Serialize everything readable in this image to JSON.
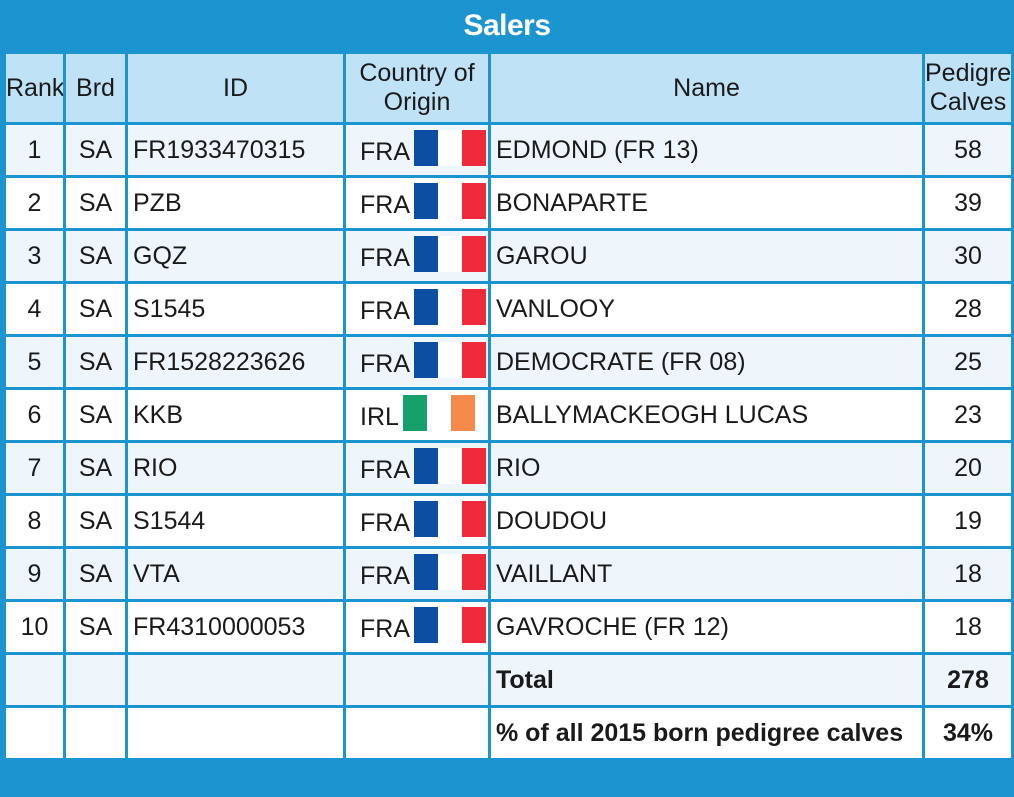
{
  "title": "Salers",
  "headers": {
    "rank": "Rank",
    "brd": "Brd",
    "id": "ID",
    "country_line1": "Country of",
    "country_line2": "Origin",
    "name": "Name",
    "calves_line1": "Pedigree",
    "calves_line2": "Calves"
  },
  "flag_colors": {
    "FRA": [
      "#0b4ea2",
      "#ffffff",
      "#ef2b3b"
    ],
    "IRL": [
      "#16a06c",
      "#ffffff",
      "#f58a4b"
    ]
  },
  "rows": [
    {
      "rank": "1",
      "brd": "SA",
      "id": "FR1933470315",
      "country": "FRA",
      "name": "EDMOND (FR 13)",
      "calves": "58"
    },
    {
      "rank": "2",
      "brd": "SA",
      "id": "PZB",
      "country": "FRA",
      "name": "BONAPARTE",
      "calves": "39"
    },
    {
      "rank": "3",
      "brd": "SA",
      "id": "GQZ",
      "country": "FRA",
      "name": "GAROU",
      "calves": "30"
    },
    {
      "rank": "4",
      "brd": "SA",
      "id": "S1545",
      "country": "FRA",
      "name": "VANLOOY",
      "calves": "28"
    },
    {
      "rank": "5",
      "brd": "SA",
      "id": "FR1528223626",
      "country": "FRA",
      "name": "DEMOCRATE (FR 08)",
      "calves": "25"
    },
    {
      "rank": "6",
      "brd": "SA",
      "id": "KKB",
      "country": "IRL",
      "name": "BALLYMACKEOGH LUCAS",
      "calves": "23"
    },
    {
      "rank": "7",
      "brd": "SA",
      "id": "RIO",
      "country": "FRA",
      "name": "RIO",
      "calves": "20"
    },
    {
      "rank": "8",
      "brd": "SA",
      "id": "S1544",
      "country": "FRA",
      "name": "DOUDOU",
      "calves": "19"
    },
    {
      "rank": "9",
      "brd": "SA",
      "id": "VTA",
      "country": "FRA",
      "name": "VAILLANT",
      "calves": "18"
    },
    {
      "rank": "10",
      "brd": "SA",
      "id": "FR4310000053",
      "country": "FRA",
      "name": "GAVROCHE (FR 12)",
      "calves": "18"
    }
  ],
  "footer": {
    "total_label": "Total",
    "total_value": "278",
    "pct_label": "% of all 2015 born pedigree calves",
    "pct_value": "34%"
  }
}
